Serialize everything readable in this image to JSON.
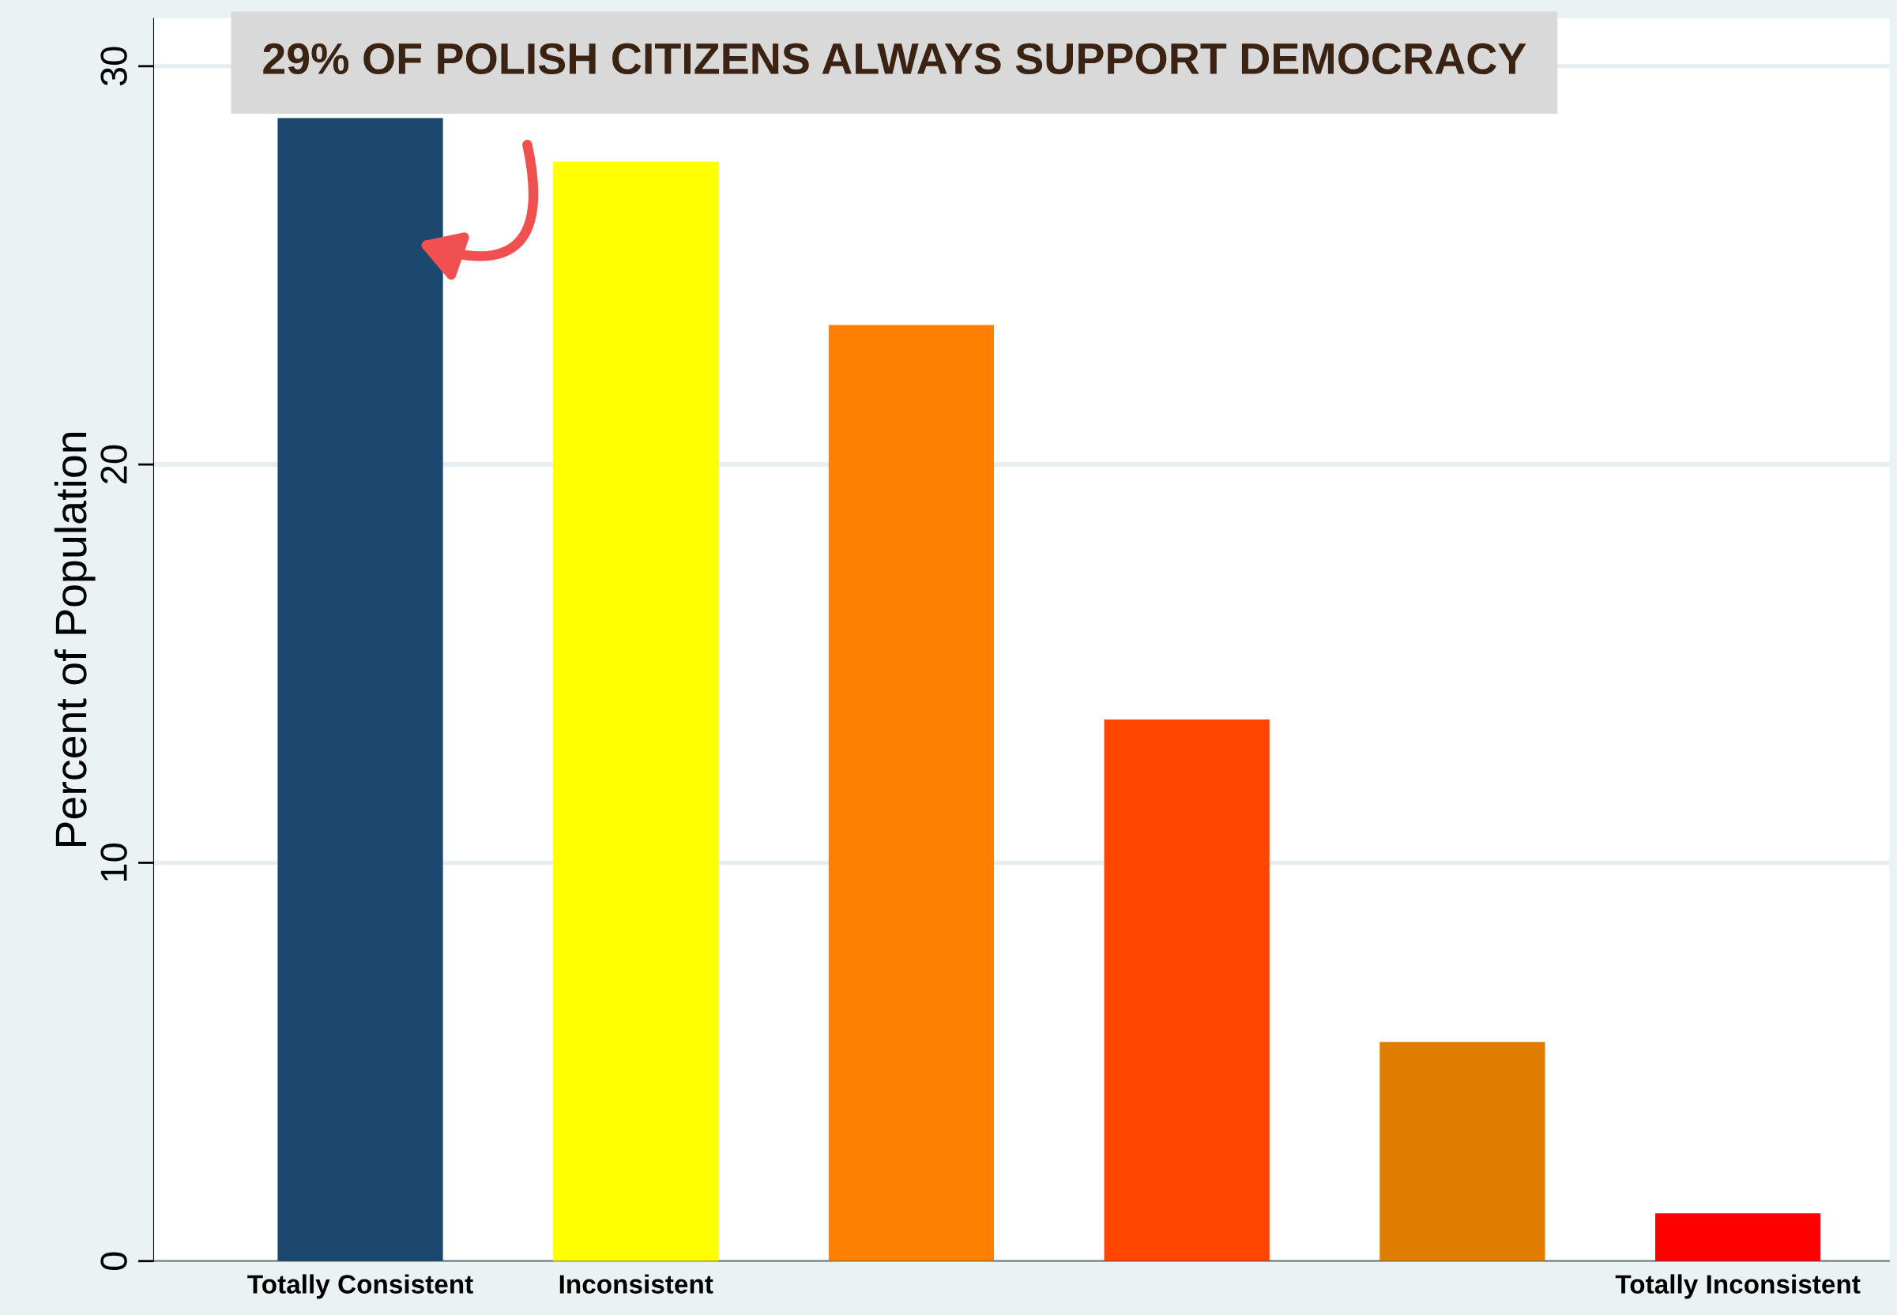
{
  "chart_data": {
    "type": "bar",
    "ylabel": "Percent of Population",
    "categories": [
      "Totally Consistent",
      "Inconsistent",
      null,
      null,
      null,
      "Totally Inconsistent"
    ],
    "values": [
      28.7,
      27.6,
      23.5,
      13.6,
      5.5,
      1.2
    ],
    "colors": [
      "#1c4870",
      "#ffff00",
      "#ff8000",
      "#ff4500",
      "#e07d00",
      "#ff0000"
    ],
    "ylim": [
      0,
      31.2
    ],
    "yticks": [
      0,
      10,
      20,
      30
    ],
    "grid": "y",
    "annotations": [
      "29% OF POLISH CITIZENS ALWAYS SUPPORT DEMOCRACY"
    ]
  }
}
